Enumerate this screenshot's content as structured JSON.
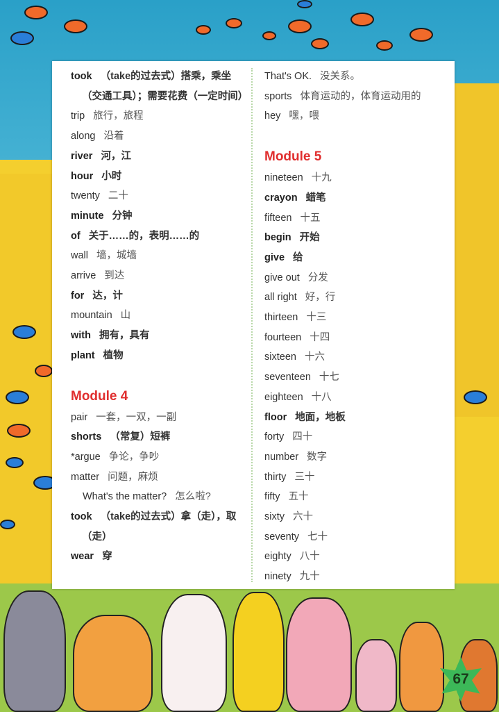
{
  "left_column": [
    {
      "word": "took",
      "meaning": "（take的过去式）搭乘，乘坐（交通工具）；需要花费（一定时间）",
      "bold": true
    },
    {
      "word": "trip",
      "meaning": "旅行，旅程",
      "bold": false
    },
    {
      "word": "along",
      "meaning": "沿着",
      "bold": false
    },
    {
      "word": "river",
      "meaning": "河，江",
      "bold": true
    },
    {
      "word": "hour",
      "meaning": "小时",
      "bold": true
    },
    {
      "word": "twenty",
      "meaning": "二十",
      "bold": false
    },
    {
      "word": "minute",
      "meaning": "分钟",
      "bold": true
    },
    {
      "word": "of",
      "meaning": "关于……的，表明……的",
      "bold": true
    },
    {
      "word": "wall",
      "meaning": "墙，城墙",
      "bold": false
    },
    {
      "word": "arrive",
      "meaning": "到达",
      "bold": false
    },
    {
      "word": "for",
      "meaning": "达，计",
      "bold": true
    },
    {
      "word": "mountain",
      "meaning": "山",
      "bold": false
    },
    {
      "word": "with",
      "meaning": "拥有，具有",
      "bold": true
    },
    {
      "word": "plant",
      "meaning": "植物",
      "bold": true
    },
    {
      "module": "Module 4"
    },
    {
      "word": "pair",
      "meaning": "一套，一双，一副",
      "bold": false
    },
    {
      "word": "shorts",
      "meaning": "（常复）短裤",
      "bold": true
    },
    {
      "word": "*argue",
      "meaning": "争论，争吵",
      "bold": false
    },
    {
      "word": "matter",
      "meaning": "问题，麻烦",
      "bold": false
    },
    {
      "word": "What's the matter?",
      "meaning": "怎么啦?",
      "sub": true
    },
    {
      "word": "took",
      "meaning": "（take的过去式）拿（走），取（走）",
      "bold": true
    },
    {
      "word": "wear",
      "meaning": "穿",
      "bold": true
    }
  ],
  "right_column": [
    {
      "word": "That's OK.",
      "meaning": "没关系。",
      "bold": false
    },
    {
      "word": "sports",
      "meaning": "体育运动的，体育运动用的",
      "bold": false
    },
    {
      "word": "hey",
      "meaning": "嘿，喂",
      "bold": false
    },
    {
      "module": "Module 5"
    },
    {
      "word": "nineteen",
      "meaning": "十九",
      "bold": false
    },
    {
      "word": "crayon",
      "meaning": "蜡笔",
      "bold": true
    },
    {
      "word": "fifteen",
      "meaning": "十五",
      "bold": false
    },
    {
      "word": "begin",
      "meaning": "开始",
      "bold": true
    },
    {
      "word": "give",
      "meaning": "给",
      "bold": true
    },
    {
      "word": "give out",
      "meaning": "分发",
      "bold": false
    },
    {
      "word": "all right",
      "meaning": "好，行",
      "bold": false
    },
    {
      "word": "thirteen",
      "meaning": "十三",
      "bold": false
    },
    {
      "word": "fourteen",
      "meaning": "十四",
      "bold": false
    },
    {
      "word": "sixteen",
      "meaning": "十六",
      "bold": false
    },
    {
      "word": "seventeen",
      "meaning": "十七",
      "bold": false
    },
    {
      "word": "eighteen",
      "meaning": "十八",
      "bold": false
    },
    {
      "word": "floor",
      "meaning": "地面，地板",
      "bold": true
    },
    {
      "word": "forty",
      "meaning": "四十",
      "bold": false
    },
    {
      "word": "number",
      "meaning": "数字",
      "bold": false
    },
    {
      "word": "thirty",
      "meaning": "三十",
      "bold": false
    },
    {
      "word": "fifty",
      "meaning": "五十",
      "bold": false
    },
    {
      "word": "sixty",
      "meaning": "六十",
      "bold": false
    },
    {
      "word": "seventy",
      "meaning": "七十",
      "bold": false
    },
    {
      "word": "eighty",
      "meaning": "八十",
      "bold": false
    },
    {
      "word": "ninety",
      "meaning": "九十",
      "bold": false
    }
  ],
  "page_number": "67",
  "colors": {
    "module_heading": "#e02e2e",
    "badge": "#3cb858",
    "sky": "#2aa0c8",
    "wall": "#f4cf2e"
  }
}
